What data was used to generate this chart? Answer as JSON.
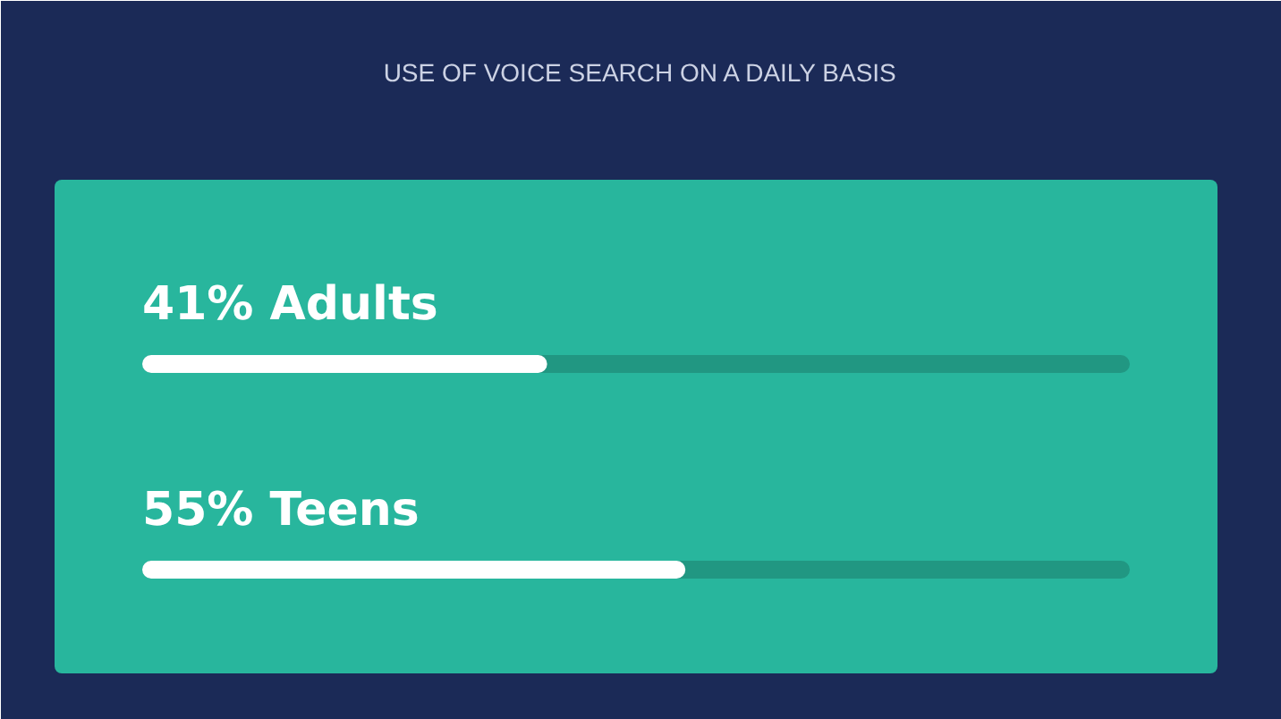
{
  "chart_data": {
    "type": "bar",
    "orientation": "horizontal",
    "title": "USE OF VOICE SEARCH ON A DAILY BASIS",
    "categories": [
      "Adults",
      "Teens"
    ],
    "values": [
      41,
      55
    ],
    "value_labels": [
      "41%",
      "55%"
    ],
    "color": "#ffffff",
    "xlim": [
      0,
      100
    ],
    "tick_labels": "y"
  }
}
